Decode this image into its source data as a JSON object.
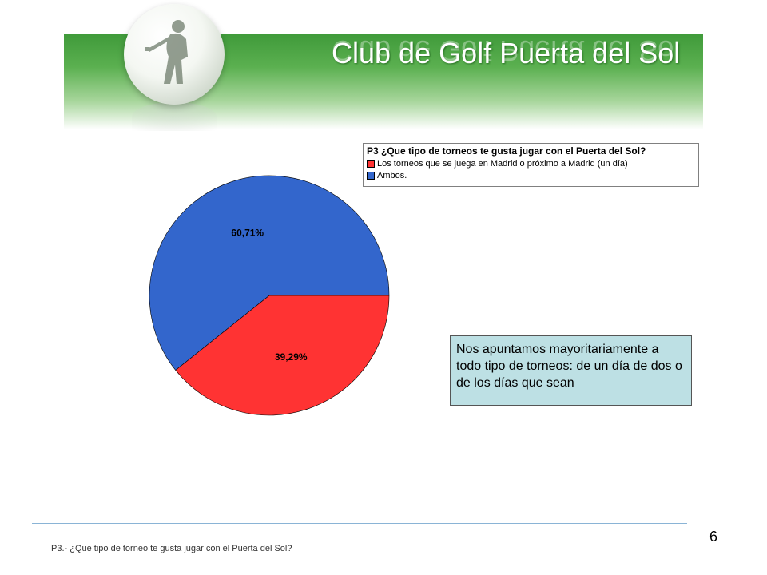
{
  "header": {
    "title": "Club de Golf Puerta del Sol"
  },
  "colors": {
    "blue": "#3366cc",
    "red": "#ff3333"
  },
  "chart_data": {
    "type": "pie",
    "title": "P3 ¿Que tipo de torneos te gusta jugar con el Puerta del Sol?",
    "legend_position": "top-right",
    "slices": [
      {
        "label": "Los torneos que se juega en Madrid o próximo a Madrid (un día)",
        "value": 39.29,
        "display": "39,29%",
        "color": "#ff3333"
      },
      {
        "label": "Ambos.",
        "value": 60.71,
        "display": "60,71%",
        "color": "#3366cc"
      }
    ]
  },
  "note": {
    "text": "Nos apuntamos mayoritariamente a todo tipo de torneos: de un día de dos o de los días que sean"
  },
  "footer": {
    "caption": "P3.- ¿Qué tipo de torneo te gusta jugar con el Puerta del Sol?",
    "page_number": "6"
  }
}
